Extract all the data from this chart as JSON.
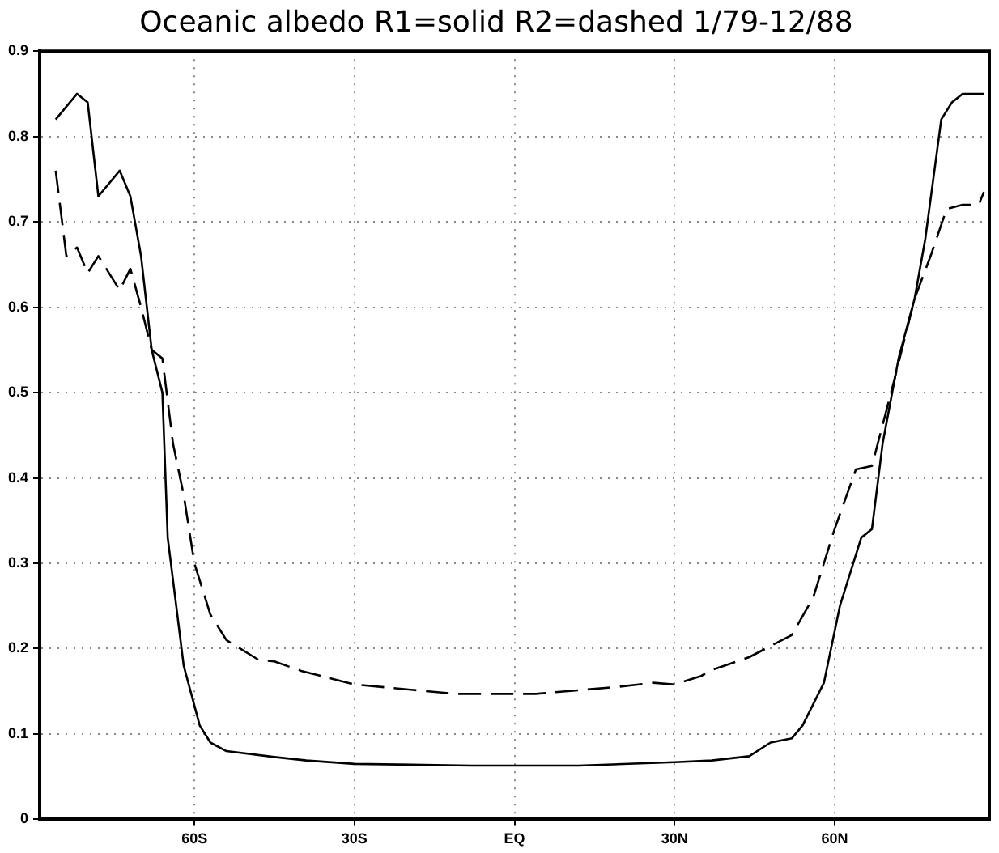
{
  "chart_data": {
    "type": "line",
    "title": "Oceanic albedo R1=solid R2=dashed 1/79-12/88",
    "xlim": [
      -89,
      89
    ],
    "xticks": [
      {
        "value": -60,
        "label": "60S"
      },
      {
        "value": -30,
        "label": "30S"
      },
      {
        "value": 0,
        "label": "EQ"
      },
      {
        "value": 30,
        "label": "30N"
      },
      {
        "value": 60,
        "label": "60N"
      }
    ],
    "ylim": [
      0,
      0.9
    ],
    "yticks": [
      0,
      0.1,
      0.2,
      0.3,
      0.4,
      0.5,
      0.6,
      0.7,
      0.8,
      0.9
    ],
    "grid": true,
    "legend": false,
    "marker": "none",
    "series": [
      {
        "color": "#000000",
        "line_style": "solid",
        "x": [
          -86,
          -82,
          -80,
          -78,
          -74,
          -72,
          -70,
          -68,
          -66,
          -65,
          -62,
          -59,
          -57,
          -54,
          -45,
          -39,
          -30,
          -8,
          12,
          30,
          37,
          44,
          48,
          52,
          54,
          58,
          61,
          65,
          67,
          69,
          72,
          75,
          77,
          80,
          82,
          84,
          88
        ],
        "values": [
          0.82,
          0.85,
          0.84,
          0.73,
          0.76,
          0.73,
          0.66,
          0.55,
          0.5,
          0.33,
          0.18,
          0.11,
          0.09,
          0.08,
          0.073,
          0.069,
          0.065,
          0.063,
          0.063,
          0.067,
          0.069,
          0.074,
          0.09,
          0.095,
          0.11,
          0.16,
          0.25,
          0.33,
          0.34,
          0.44,
          0.54,
          0.61,
          0.68,
          0.82,
          0.84,
          0.85,
          0.85
        ]
      },
      {
        "color": "#000000",
        "line_style": "dashed",
        "x": [
          -86,
          -84,
          -82,
          -80,
          -78,
          -74,
          -72,
          -70,
          -68,
          -66,
          -64,
          -62,
          -60,
          -57,
          -54,
          -48,
          -45,
          -40,
          -30,
          -11,
          4,
          19,
          26,
          30,
          35,
          37,
          44,
          52,
          56,
          60,
          64,
          67,
          71,
          75,
          78,
          81,
          84,
          87,
          88
        ],
        "values": [
          0.76,
          0.66,
          0.67,
          0.64,
          0.66,
          0.62,
          0.645,
          0.6,
          0.55,
          0.54,
          0.44,
          0.38,
          0.3,
          0.24,
          0.21,
          0.187,
          0.185,
          0.174,
          0.158,
          0.147,
          0.147,
          0.155,
          0.16,
          0.158,
          0.168,
          0.175,
          0.19,
          0.216,
          0.26,
          0.34,
          0.41,
          0.414,
          0.51,
          0.61,
          0.66,
          0.715,
          0.72,
          0.72,
          0.735
        ]
      }
    ]
  }
}
